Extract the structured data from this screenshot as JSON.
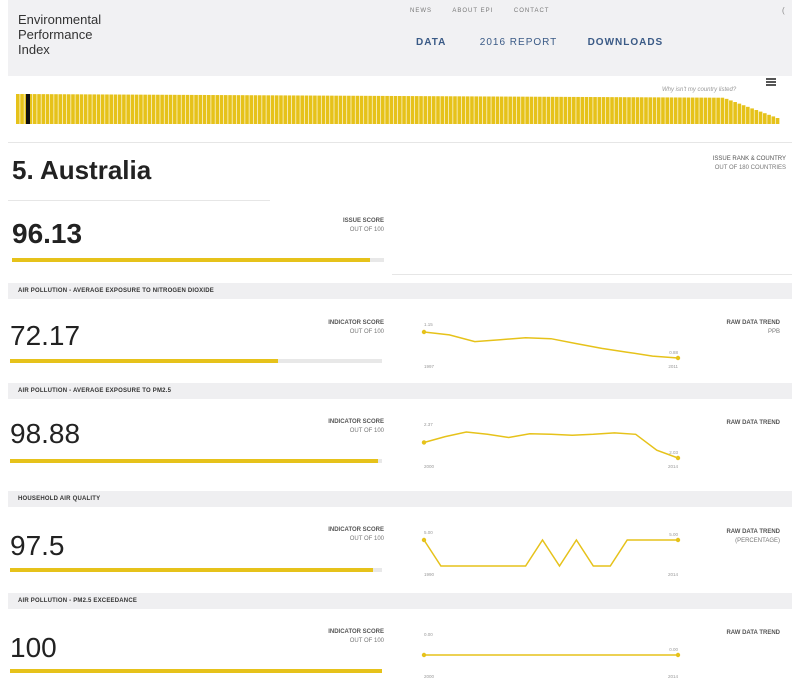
{
  "header": {
    "logo_lines": [
      "Environmental",
      "Performance",
      "Index"
    ],
    "topnav": [
      "NEWS",
      "ABOUT EPI",
      "CONTACT"
    ],
    "mainnav": [
      "DATA",
      "2016 REPORT",
      "DOWNLOADS"
    ],
    "corner": "("
  },
  "strip": {
    "why_link": "Why isn't my country listed?",
    "selected_rank": 5,
    "total_countries": 180
  },
  "country": {
    "title": "5. Australia",
    "issue_rank_label": "ISSUE RANK & COUNTRY",
    "issue_rank_sub": "OUT OF 180 COUNTRIES",
    "issue_score": "96.13",
    "issue_score_fraction": 0.9613,
    "issue_score_label": "ISSUE SCORE",
    "issue_score_sub": "OUT OF 100"
  },
  "indicators": [
    {
      "heading": "AIR POLLUTION - AVERAGE EXPOSURE TO NITROGEN DIOXIDE",
      "value": "72.17",
      "fraction": 0.7217,
      "label": "INDICATOR SCORE",
      "sub": "OUT OF 100",
      "trend_label": "RAW DATA TREND",
      "trend_sub": "PPB",
      "trend_start_val": "1.15",
      "trend_end_val": "0.88",
      "trend_start_year": "1997",
      "trend_end_year": "2011",
      "trend_points": [
        1.15,
        1.12,
        1.05,
        1.07,
        1.09,
        1.08,
        1.03,
        0.98,
        0.94,
        0.9,
        0.88
      ]
    },
    {
      "heading": "AIR POLLUTION - AVERAGE EXPOSURE TO PM2.5",
      "value": "98.88",
      "fraction": 0.9888,
      "label": "INDICATOR SCORE",
      "sub": "OUT OF 100",
      "trend_label": "RAW DATA TREND",
      "trend_sub": "",
      "trend_start_val": "2.37",
      "trend_end_val": "2.03",
      "trend_start_year": "2000",
      "trend_end_year": "2014",
      "trend_points": [
        2.37,
        2.5,
        2.6,
        2.55,
        2.48,
        2.56,
        2.55,
        2.53,
        2.55,
        2.58,
        2.55,
        2.2,
        2.03
      ]
    },
    {
      "heading": "HOUSEHOLD AIR QUALITY",
      "value": "97.5",
      "fraction": 0.975,
      "label": "INDICATOR SCORE",
      "sub": "OUT OF 100",
      "trend_label": "RAW DATA TREND",
      "trend_sub": "(PERCENTAGE)",
      "trend_start_val": "5.00",
      "trend_end_val": "5.00",
      "trend_start_year": "1990",
      "trend_end_year": "2014",
      "trend_points": [
        5,
        0,
        0,
        0,
        0,
        0,
        0,
        5,
        0,
        5,
        0,
        0,
        5,
        5,
        5,
        5
      ]
    },
    {
      "heading": "AIR POLLUTION - PM2.5 EXCEEDANCE",
      "value": "100",
      "fraction": 1.0,
      "label": "INDICATOR SCORE",
      "sub": "OUT OF 100",
      "trend_label": "RAW DATA TREND",
      "trend_sub": "",
      "trend_start_val": "0.00",
      "trend_end_val": "0.00",
      "trend_start_year": "2000",
      "trend_end_year": "2014",
      "trend_points": [
        0,
        0,
        0,
        0,
        0,
        0,
        0,
        0
      ]
    }
  ],
  "colors": {
    "accent": "#e6c21a",
    "nav": "#3a5a86",
    "header_bg": "#f1f1f3"
  }
}
